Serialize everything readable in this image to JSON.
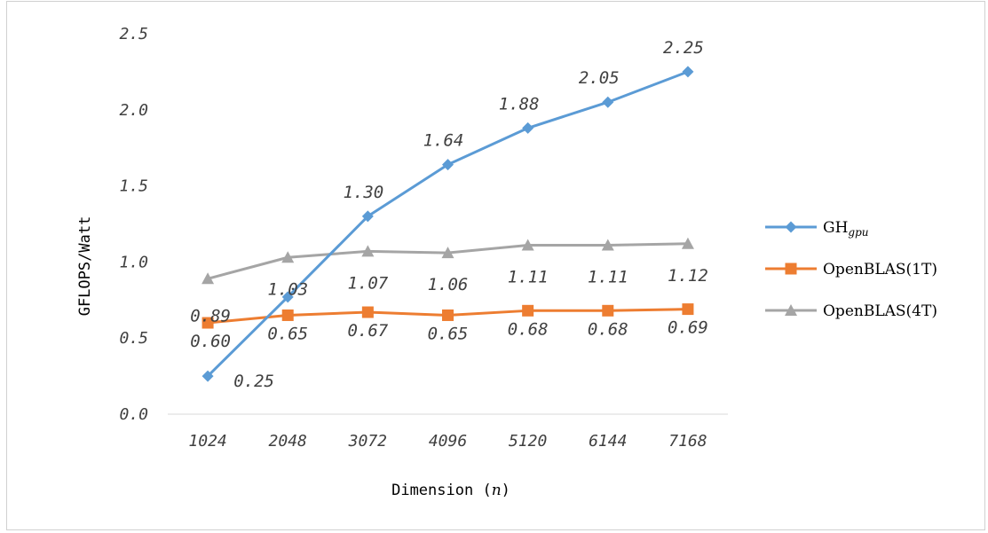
{
  "chart_data": {
    "type": "line",
    "xlabel": "Dimension",
    "xlabel_var": "n",
    "ylabel": "GFLOPS/Watt",
    "ylim": [
      0,
      2.5
    ],
    "yticks": [
      "0.0",
      "0.5",
      "1.0",
      "1.5",
      "2.0",
      "2.5"
    ],
    "categories": [
      "1024",
      "2048",
      "3072",
      "4096",
      "5120",
      "6144",
      "7168"
    ],
    "grid": false,
    "legend_position": "right",
    "series": [
      {
        "name": "GH",
        "name_sub": "gpu",
        "color": "#5B9BD5",
        "marker": "diamond",
        "values": [
          0.25,
          0.77,
          1.3,
          1.64,
          1.88,
          2.05,
          2.25
        ],
        "labels": [
          "0.25",
          "",
          "1.30",
          "1.64",
          "1.88",
          "2.05",
          "2.25"
        ]
      },
      {
        "name": "OpenBLAS(1T)",
        "color": "#ED7D31",
        "marker": "square",
        "values": [
          0.6,
          0.65,
          0.67,
          0.65,
          0.68,
          0.68,
          0.69
        ],
        "labels": [
          "0.60",
          "0.65",
          "0.67",
          "0.65",
          "0.68",
          "0.68",
          "0.69"
        ]
      },
      {
        "name": "OpenBLAS(4T)",
        "color": "#A5A5A5",
        "marker": "triangle",
        "values": [
          0.89,
          1.03,
          1.07,
          1.06,
          1.11,
          1.11,
          1.12
        ],
        "labels": [
          "0.89",
          "1.03",
          "1.07",
          "1.06",
          "1.11",
          "1.11",
          "1.12"
        ]
      }
    ]
  }
}
